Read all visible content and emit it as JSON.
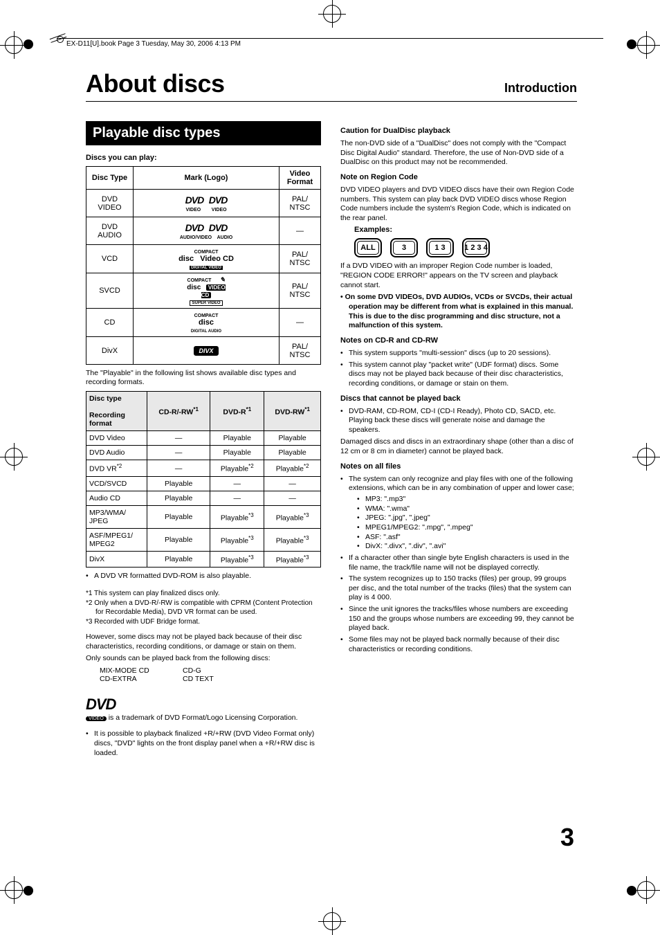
{
  "running_head": "EX-D11[U].book  Page 3  Tuesday, May 30, 2006  4:13 PM",
  "title": "About discs",
  "section": "Introduction",
  "banner": "Playable disc types",
  "discs_label": "Discs you can play:",
  "table1": {
    "headers": [
      "Disc Type",
      "Mark (Logo)",
      "Video Format"
    ],
    "rows": [
      {
        "type": "DVD VIDEO",
        "logo": "DVD VIDEO",
        "fmt": "PAL/ NTSC"
      },
      {
        "type": "DVD AUDIO",
        "logo": "DVD AUDIO",
        "fmt": "—"
      },
      {
        "type": "VCD",
        "logo": "COMPACT disc Video CD",
        "fmt": "PAL/ NTSC"
      },
      {
        "type": "SVCD",
        "logo": "SUPER VIDEO CD",
        "fmt": "PAL/ NTSC"
      },
      {
        "type": "CD",
        "logo": "COMPACT disc DIGITAL AUDIO",
        "fmt": "—"
      },
      {
        "type": "DivX",
        "logo": "DIVX",
        "fmt": "PAL/ NTSC"
      }
    ]
  },
  "table1_note": "The \"Playable\" in the following list shows available disc types and recording formats.",
  "table2": {
    "head_left_top": "Disc type",
    "head_left_bot": "Recording format",
    "cols": [
      "CD-R/-RW",
      "DVD-R",
      "DVD-RW"
    ],
    "col_sup": "*1",
    "rows": [
      {
        "t": "DVD Video",
        "c": [
          "—",
          "Playable",
          "Playable"
        ]
      },
      {
        "t": "DVD Audio",
        "c": [
          "—",
          "Playable",
          "Playable"
        ]
      },
      {
        "t": "DVD VR",
        "t_sup": "*2",
        "c": [
          "—",
          "Playable",
          "Playable"
        ],
        "c_sup": [
          "",
          "*2",
          "*2"
        ]
      },
      {
        "t": "VCD/SVCD",
        "c": [
          "Playable",
          "—",
          "—"
        ]
      },
      {
        "t": "Audio CD",
        "c": [
          "Playable",
          "—",
          "—"
        ]
      },
      {
        "t": "MP3/WMA/ JPEG",
        "c": [
          "Playable",
          "Playable",
          "Playable"
        ],
        "c_sup": [
          "",
          "*3",
          "*3"
        ]
      },
      {
        "t": "ASF/MPEG1/ MPEG2",
        "c": [
          "Playable",
          "Playable",
          "Playable"
        ],
        "c_sup": [
          "",
          "*3",
          "*3"
        ]
      },
      {
        "t": "DivX",
        "c": [
          "Playable",
          "Playable",
          "Playable"
        ],
        "c_sup": [
          "",
          "*3",
          "*3"
        ]
      }
    ]
  },
  "dvdrom_note": "A DVD VR formatted DVD-ROM is also playable.",
  "footnotes": [
    "*1 This system can play finalized discs only.",
    "*2 Only when a DVD-R/-RW is compatible with CPRM (Content Protection for Recordable Media), DVD VR format can be used.",
    "*3 Recorded with UDF Bridge format."
  ],
  "however": "However, some discs may not be played back because of their disc characteristics, recording conditions, or damage or stain on them.",
  "only_sounds": "Only sounds can be played back from the following discs:",
  "sound_discs": [
    [
      "MIX-MODE CD",
      "CD-G"
    ],
    [
      "CD-EXTRA",
      "CD TEXT"
    ]
  ],
  "trademark": " is a trademark of DVD Format/Logo Licensing Corporation.",
  "plusrw": "It is possible to playback finalized +R/+RW (DVD Video Format only) discs,  \"DVD\" lights on the front display panel when a +R/+RW disc is loaded.",
  "right": {
    "dualdisc_h": "Caution for DualDisc playback",
    "dualdisc": "The non-DVD side of a \"DualDisc\" does not comply with the \"Compact Disc Digital Audio\" standard. Therefore, the use of Non-DVD side of a DualDisc on this product may not be recommended.",
    "region_h": "Note on Region Code",
    "region": "DVD VIDEO players and DVD VIDEO discs have their own Region Code numbers. This system can play back DVD VIDEO discs whose Region Code numbers include the system's Region Code, which is indicated on the rear panel.",
    "examples": "Examples:",
    "region_icons": [
      "ALL",
      "3",
      "1 3",
      "1 2 3 4"
    ],
    "region_err": "If a DVD VIDEO with an improper Region Code number is loaded, \"REGION CODE ERROR!\" appears on the TV screen and playback cannot start.",
    "region_bold": "On some DVD VIDEOs, DVD AUDIOs, VCDs or SVCDs, their actual operation may be different from what is explained in this manual. This is due to the disc programming and disc structure, not a malfunction of this system.",
    "cdr_h": "Notes on CD-R and CD-RW",
    "cdr_b1": "This system supports \"multi-session\" discs (up to 20 sessions).",
    "cdr_b2": "This system cannot play \"packet write\" (UDF format) discs. Some discs may not be played back because of their disc characteristics, recording conditions, or damage or stain on them.",
    "noplay_h": "Discs that cannot be played back",
    "noplay_b1": "DVD-RAM, CD-ROM, CD-I (CD-I Ready), Photo CD, SACD, etc.",
    "noplay_b1b": "Playing back these discs will generate noise and damage the speakers.",
    "noplay_p": "Damaged discs and discs in an extraordinary shape (other than a disc of 12 cm or 8 cm in diameter) cannot be played back.",
    "files_h": "Notes on all files",
    "files_b1": "The system can only recognize and play files with one of the following extensions, which can be in any combination of upper and lower case;",
    "ext": [
      "MP3: \".mp3\"",
      "WMA: \".wma\"",
      "JPEG: \".jpg\", \".jpeg\"",
      "MPEG1/MPEG2: \".mpg\", \".mpeg\"",
      "ASF: \".asf\"",
      "DivX: \".divx\", \".div\", \".avi\""
    ],
    "files_b2": "If a character other than single byte English characters is used in the file name, the track/file name will not be displayed correctly.",
    "files_b3": "The system recognizes up to 150 tracks (files) per group, 99 groups per disc, and the total number of the tracks (files) that the system can play is 4 000.",
    "files_b4": "Since the unit ignores the tracks/files whose numbers are exceeding 150 and the groups whose numbers are exceeding 99, they cannot be played back.",
    "files_b5": "Some files may not be played back normally because of their disc characteristics or recording conditions."
  },
  "page_num": "3"
}
